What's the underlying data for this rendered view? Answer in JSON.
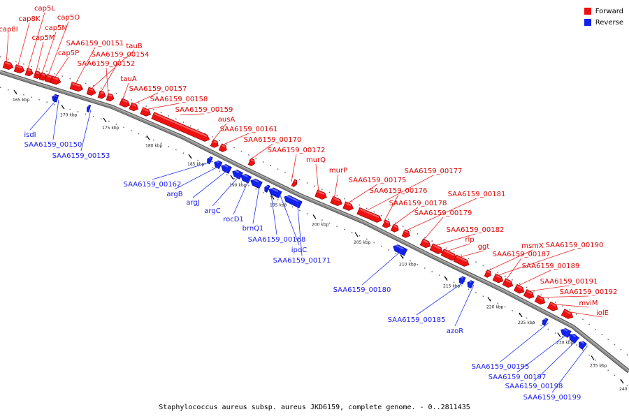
{
  "legend": {
    "forward_label": "Forward",
    "reverse_label": "Reverse"
  },
  "colors": {
    "forward": "#ee1111",
    "reverse": "#1122ee",
    "backbone": "#888888"
  },
  "caption": "Staphylococcus aureus subsp. aureus JKD6159, complete genome. - 0..2811435",
  "diagram": {
    "ticks": [
      "165 kbp",
      "170 kbp",
      "175 kbp",
      "180 kbp",
      "185 kbp",
      "190 kbp",
      "195 kbp",
      "200 kbp",
      "205 kbp",
      "210 kbp",
      "215 kbp",
      "220 kbp",
      "225 kbp",
      "230 kbp",
      "235 kbp",
      "240 kbp"
    ],
    "forward_genes": [
      "cap8I",
      "cap8K",
      "cap5L",
      "cap5M",
      "cap5N",
      "cap5O",
      "cap5P",
      "SAA6159_00151",
      "tauB",
      "SAA6159_00154",
      "SAA6159_00152",
      "tauA",
      "SAA6159_00157",
      "SAA6159_00158",
      "SAA6159_00159",
      "ausA",
      "SAA6159_00161",
      "SAA6159_00170",
      "SAA6159_00172",
      "murQ",
      "murP",
      "SAA6159_00175",
      "SAA6159_00177",
      "SAA6159_00176",
      "SAA6159_00178",
      "SAA6159_00181",
      "SAA6159_00179",
      "SAA6159_00182",
      "rlp",
      "ggt",
      "msmX",
      "SAA6159_00190",
      "SAA6159_00187",
      "SAA6159_00189",
      "SAA6159_00191",
      "SAA6159_00192",
      "mviM",
      "iolE"
    ],
    "reverse_genes": [
      "isdI",
      "SAA6159_00150",
      "SAA6159_00153",
      "SAA6159_00162",
      "argB",
      "argJ",
      "argC",
      "rocD1",
      "brnQ1",
      "SAA6159_00168",
      "ipdC",
      "SAA6159_00171",
      "SAA6159_00180",
      "SAA6159_00185",
      "azoR",
      "SAA6159_00195",
      "SAA6159_00197",
      "SAA6159_00198",
      "SAA6159_00199"
    ]
  }
}
